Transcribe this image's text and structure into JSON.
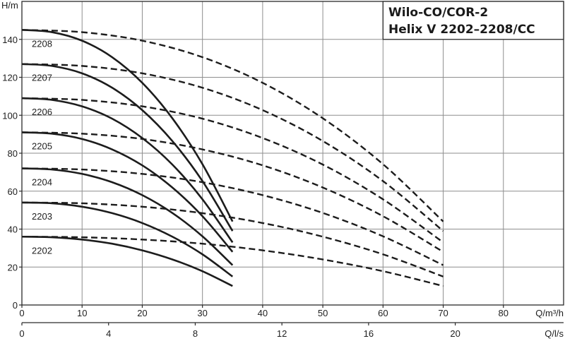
{
  "chart_data": {
    "type": "line",
    "title": "Wilo-CO/COR-2",
    "subtitle": "Helix V 2202–2208/CC",
    "ylabel": "H/m",
    "xlabel": "Q/m³/h",
    "x2label": "Q/l/s",
    "xlim": [
      0,
      90
    ],
    "ylim": [
      0,
      160
    ],
    "xticks": [
      0,
      10,
      20,
      30,
      40,
      50,
      60,
      70,
      80
    ],
    "x2ticks": [
      0,
      4,
      8,
      12,
      16,
      20
    ],
    "yticks": [
      0,
      20,
      40,
      60,
      80,
      100,
      120,
      140
    ],
    "grid": true,
    "series": [
      {
        "name": "2208",
        "solid": {
          "x": [
            0,
            5,
            10,
            15,
            20,
            25,
            30,
            35
          ],
          "y": [
            145,
            143.8,
            139.3,
            130.6,
            117.1,
            98.4,
            74.2,
            44
          ]
        },
        "dashed": {
          "x": [
            0,
            10,
            20,
            30,
            40,
            50,
            60,
            70
          ],
          "y": [
            145,
            143.8,
            139.3,
            130.6,
            117.1,
            98.4,
            74.2,
            44
          ]
        }
      },
      {
        "name": "2207",
        "solid": {
          "x": [
            0,
            5,
            10,
            15,
            20,
            25,
            30,
            35
          ],
          "y": [
            127,
            126.0,
            122.1,
            114.5,
            102.7,
            86.4,
            65.3,
            39
          ]
        },
        "dashed": {
          "x": [
            0,
            10,
            20,
            30,
            40,
            50,
            60,
            70
          ],
          "y": [
            127,
            126.0,
            122.1,
            114.5,
            102.7,
            86.4,
            65.3,
            39
          ]
        }
      },
      {
        "name": "2206",
        "solid": {
          "x": [
            0,
            5,
            10,
            15,
            20,
            25,
            30,
            35
          ],
          "y": [
            109,
            108.1,
            104.7,
            98.2,
            88.0,
            74.0,
            55.7,
            33
          ]
        },
        "dashed": {
          "x": [
            0,
            10,
            20,
            30,
            40,
            50,
            60,
            70
          ],
          "y": [
            109,
            108.1,
            104.7,
            98.2,
            88.0,
            74.0,
            55.7,
            33
          ]
        }
      },
      {
        "name": "2205",
        "solid": {
          "x": [
            0,
            5,
            10,
            15,
            20,
            25,
            30,
            35
          ],
          "y": [
            91,
            90.3,
            87.5,
            82.0,
            73.6,
            61.9,
            46.8,
            28
          ]
        },
        "dashed": {
          "x": [
            0,
            10,
            20,
            30,
            40,
            50,
            60,
            70
          ],
          "y": [
            91,
            90.3,
            87.5,
            82.0,
            73.6,
            61.9,
            46.8,
            28
          ]
        }
      },
      {
        "name": "2204",
        "solid": {
          "x": [
            0,
            5,
            10,
            15,
            20,
            25,
            30,
            35
          ],
          "y": [
            72,
            71.4,
            69.1,
            64.7,
            57.9,
            48.5,
            36.2,
            21
          ]
        },
        "dashed": {
          "x": [
            0,
            10,
            20,
            30,
            40,
            50,
            60,
            70
          ],
          "y": [
            72,
            71.4,
            69.1,
            64.7,
            57.9,
            48.5,
            36.2,
            21
          ]
        }
      },
      {
        "name": "2203",
        "solid": {
          "x": [
            0,
            5,
            10,
            15,
            20,
            25,
            30,
            35
          ],
          "y": [
            54,
            53.6,
            51.8,
            48.4,
            43.2,
            36.0,
            26.7,
            15
          ]
        },
        "dashed": {
          "x": [
            0,
            10,
            20,
            30,
            40,
            50,
            60,
            70
          ],
          "y": [
            54,
            53.6,
            51.8,
            48.4,
            43.2,
            36.0,
            26.7,
            15
          ]
        }
      },
      {
        "name": "2202",
        "solid": {
          "x": [
            0,
            5,
            10,
            15,
            20,
            25,
            30,
            35
          ],
          "y": [
            36,
            35.7,
            34.5,
            32.3,
            28.8,
            24.0,
            17.8,
            10
          ]
        },
        "dashed": {
          "x": [
            0,
            10,
            20,
            30,
            40,
            50,
            60,
            70
          ],
          "y": [
            36,
            35.7,
            34.5,
            32.3,
            28.8,
            24.0,
            17.8,
            10
          ]
        }
      }
    ]
  }
}
